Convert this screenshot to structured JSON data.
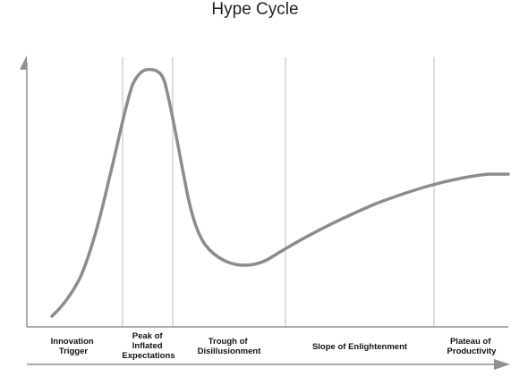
{
  "title": "Hype Cycle",
  "colors": {
    "curve": "#8c8c8c",
    "axis": "#909090",
    "divider": "#d3d3d3",
    "text": "#111111"
  },
  "phases": [
    {
      "lines": [
        "Innovation",
        "Trigger"
      ]
    },
    {
      "lines": [
        "Peak of",
        "Inflated",
        "Expectations"
      ]
    },
    {
      "lines": [
        "Trough of",
        "Disillusionment"
      ]
    },
    {
      "lines": [
        "Slope of Enlightenment"
      ]
    },
    {
      "lines": [
        "Plateau of",
        "Productivity"
      ]
    }
  ]
}
